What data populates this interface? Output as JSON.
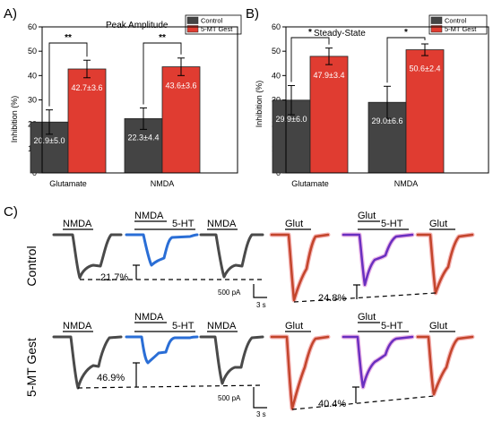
{
  "panel_labels": {
    "a": "A)",
    "b": "B)",
    "c": "C)"
  },
  "colors": {
    "control": "#444444",
    "gest": "#e03c31",
    "trace_dark": "#4a4a4a",
    "trace_blue": "#2a6ed6",
    "trace_red": "#c3452c",
    "trace_purple": "#6a2fc0",
    "glow_red": "#f2a0a0",
    "glow_purple": "#e5a3e0"
  },
  "chart_data": [
    {
      "type": "bar",
      "title": "Peak Amplitude",
      "ylabel": "Inhibition (%)",
      "ylim": [
        0,
        60
      ],
      "yticks": [
        "0",
        "10",
        "20",
        "30",
        "40",
        "50",
        "60"
      ],
      "categories": [
        "Glutamate",
        "NMDA"
      ],
      "legend": [
        "Control",
        "5-MT Gest"
      ],
      "legend_position": "top-right",
      "series": [
        {
          "name": "Control",
          "values": [
            20.9,
            22.3
          ],
          "errors": [
            5.0,
            4.4
          ],
          "labels": [
            "20.9±5.0",
            "22.3±4.4"
          ]
        },
        {
          "name": "5-MT Gest",
          "values": [
            42.7,
            43.6
          ],
          "errors": [
            3.6,
            3.6
          ],
          "labels": [
            "42.7±3.6",
            "43.6±3.6"
          ]
        }
      ],
      "significance": [
        "**",
        "**"
      ]
    },
    {
      "type": "bar",
      "title": "Steady-State",
      "ylabel": "Inhibition (%)",
      "ylim": [
        0,
        60
      ],
      "yticks": [
        "0",
        "10",
        "20",
        "30",
        "40",
        "50",
        "60"
      ],
      "categories": [
        "Glutamate",
        "NMDA"
      ],
      "legend": [
        "Control",
        "5-MT Gest"
      ],
      "legend_position": "top-right",
      "series": [
        {
          "name": "Control",
          "values": [
            29.9,
            29.0
          ],
          "errors": [
            6.0,
            6.6
          ],
          "labels": [
            "29.9±6.0",
            "29.0±6.6"
          ]
        },
        {
          "name": "5-MT Gest",
          "values": [
            47.9,
            50.6
          ],
          "errors": [
            3.4,
            2.4
          ],
          "labels": [
            "47.9±3.4",
            "50.6±2.4"
          ]
        }
      ],
      "significance": [
        "*",
        "*"
      ]
    }
  ],
  "traces": {
    "row_labels": [
      "Control",
      "5-MT Gest"
    ],
    "control_labels": {
      "nmda1": "NMDA",
      "nmda2": "NMDA",
      "ht1": "5-HT",
      "nmda3": "NMDA",
      "glut1": "Glut",
      "glut2": "Glut",
      "ht2": "5-HT",
      "glut3": "Glut"
    },
    "gest_labels": {
      "nmda1": "NMDA",
      "nmda2": "NMDA",
      "ht1": "5-HT",
      "nmda3": "NMDA",
      "glut1": "Glut",
      "glut2": "Glut",
      "ht2": "5-HT",
      "glut3": "Glut"
    },
    "control_pcts": [
      "21.7%",
      "24.8%"
    ],
    "gest_pcts": [
      "46.9%",
      "40.4%"
    ],
    "scale_current": "500 pA",
    "scale_time": "3 s"
  }
}
